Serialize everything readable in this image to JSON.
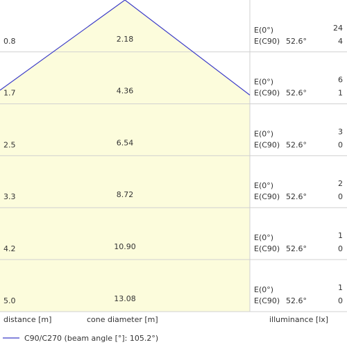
{
  "rows": [
    {
      "distance": "0.8",
      "diameter": "2.18",
      "e0_label": "E(0°)",
      "e0": "24",
      "ec90_label": "E(C90)",
      "angle": "52.6°",
      "ec90": "4"
    },
    {
      "distance": "1.7",
      "diameter": "4.36",
      "e0_label": "E(0°)",
      "e0": "6",
      "ec90_label": "E(C90)",
      "angle": "52.6°",
      "ec90": "1"
    },
    {
      "distance": "2.5",
      "diameter": "6.54",
      "e0_label": "E(0°)",
      "e0": "3",
      "ec90_label": "E(C90)",
      "angle": "52.6°",
      "ec90": "0"
    },
    {
      "distance": "3.3",
      "diameter": "8.72",
      "e0_label": "E(0°)",
      "e0": "2",
      "ec90_label": "E(C90)",
      "angle": "52.6°",
      "ec90": "0"
    },
    {
      "distance": "4.2",
      "diameter": "10.90",
      "e0_label": "E(0°)",
      "e0": "1",
      "ec90_label": "E(C90)",
      "angle": "52.6°",
      "ec90": "0"
    },
    {
      "distance": "5.0",
      "diameter": "13.08",
      "e0_label": "E(0°)",
      "e0": "1",
      "ec90_label": "E(C90)",
      "angle": "52.6°",
      "ec90": "0"
    }
  ],
  "footer": {
    "distance": "distance [m]",
    "diameter": "cone diameter [m]",
    "illuminance": "illuminance [lx]"
  },
  "legend": {
    "label": "C90/C270 (beam angle [°]: 105.2°)"
  }
}
